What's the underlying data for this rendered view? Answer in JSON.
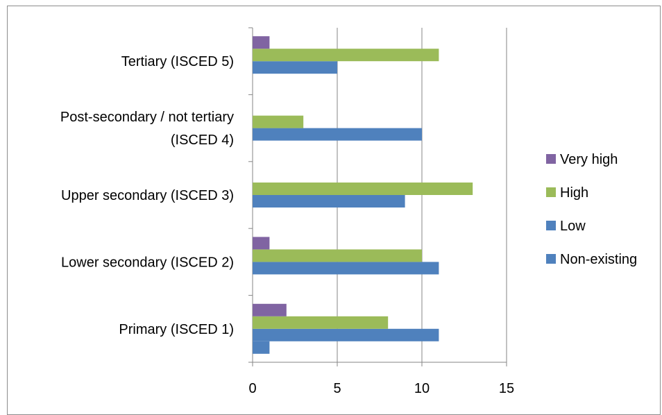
{
  "chart_data": {
    "type": "bar",
    "orientation": "horizontal",
    "categories": [
      "Primary (ISCED 1)",
      "Lower secondary (ISCED 2)",
      "Upper secondary (ISCED 3)",
      [
        "Post-secondary / not tertiary",
        "(ISCED 4)"
      ],
      "Tertiary (ISCED 5)"
    ],
    "series": [
      {
        "name": "Non-existing",
        "color": "#4f81bd",
        "values": [
          1,
          0,
          0,
          0,
          0
        ]
      },
      {
        "name": "Low",
        "color": "#4f81bd",
        "values": [
          11,
          11,
          9,
          10,
          5
        ]
      },
      {
        "name": "High",
        "color": "#9bbb59",
        "values": [
          8,
          10,
          13,
          3,
          11
        ]
      },
      {
        "name": "Very high",
        "color": "#8064a2",
        "values": [
          2,
          1,
          0,
          0,
          1
        ]
      }
    ],
    "legend_order": [
      "Very high",
      "High",
      "Low",
      "Non-existing"
    ],
    "legend_position": "right",
    "xlim": [
      0,
      15
    ],
    "x_ticks": [
      0,
      5,
      10,
      15
    ],
    "grid": "vertical",
    "title": "",
    "xlabel": "",
    "ylabel": ""
  }
}
